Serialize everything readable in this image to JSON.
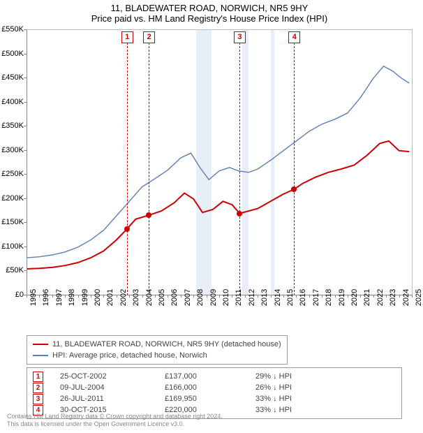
{
  "title": "11, BLADEWATER ROAD, NORWICH, NR5 9HY",
  "subtitle": "Price paid vs. HM Land Registry's House Price Index (HPI)",
  "chart": {
    "type": "line",
    "x_years": [
      1995,
      1996,
      1997,
      1998,
      1999,
      2000,
      2001,
      2002,
      2003,
      2004,
      2005,
      2006,
      2007,
      2008,
      2009,
      2010,
      2011,
      2012,
      2013,
      2014,
      2015,
      2016,
      2017,
      2018,
      2019,
      2020,
      2021,
      2022,
      2023,
      2024,
      2025
    ],
    "ylim": [
      0,
      550000
    ],
    "ytick_step": 50000,
    "ytick_labels": [
      "£0",
      "£50K",
      "£100K",
      "£150K",
      "£200K",
      "£250K",
      "£300K",
      "£350K",
      "£400K",
      "£450K",
      "£500K",
      "£550K"
    ],
    "background_color": "#ffffff",
    "grid_color": "#bbbbbb",
    "recession_bands": [
      {
        "from": 2008.2,
        "to": 2009.4
      },
      {
        "from": 2011.8,
        "to": 2012.3
      },
      {
        "from": 2014.0,
        "to": 2014.3
      }
    ],
    "series": [
      {
        "name": "property",
        "label": "11, BLADEWATER ROAD, NORWICH, NR5 9HY (detached house)",
        "color": "#cc0000",
        "width": 2,
        "points": [
          [
            1995.0,
            55000
          ],
          [
            1996.0,
            56000
          ],
          [
            1997.0,
            58000
          ],
          [
            1998.0,
            62000
          ],
          [
            1999.0,
            68000
          ],
          [
            2000.0,
            78000
          ],
          [
            2001.0,
            92000
          ],
          [
            2002.0,
            115000
          ],
          [
            2002.8,
            137000
          ],
          [
            2003.5,
            158000
          ],
          [
            2004.5,
            166000
          ],
          [
            2005.5,
            175000
          ],
          [
            2006.5,
            192000
          ],
          [
            2007.3,
            212000
          ],
          [
            2008.0,
            200000
          ],
          [
            2008.7,
            172000
          ],
          [
            2009.5,
            178000
          ],
          [
            2010.3,
            195000
          ],
          [
            2011.0,
            188000
          ],
          [
            2011.6,
            169950
          ],
          [
            2012.3,
            175000
          ],
          [
            2013.0,
            180000
          ],
          [
            2014.0,
            195000
          ],
          [
            2015.0,
            210000
          ],
          [
            2015.83,
            220000
          ],
          [
            2016.5,
            232000
          ],
          [
            2017.5,
            245000
          ],
          [
            2018.5,
            255000
          ],
          [
            2019.5,
            262000
          ],
          [
            2020.5,
            270000
          ],
          [
            2021.5,
            290000
          ],
          [
            2022.5,
            315000
          ],
          [
            2023.2,
            320000
          ],
          [
            2024.0,
            300000
          ],
          [
            2024.8,
            298000
          ]
        ]
      },
      {
        "name": "hpi",
        "label": "HPI: Average price, detached house, Norwich",
        "color": "#5b7fb5",
        "width": 1.4,
        "points": [
          [
            1995.0,
            78000
          ],
          [
            1996.0,
            80000
          ],
          [
            1997.0,
            84000
          ],
          [
            1998.0,
            90000
          ],
          [
            1999.0,
            100000
          ],
          [
            2000.0,
            115000
          ],
          [
            2001.0,
            135000
          ],
          [
            2002.0,
            165000
          ],
          [
            2003.0,
            195000
          ],
          [
            2004.0,
            225000
          ],
          [
            2005.0,
            242000
          ],
          [
            2006.0,
            260000
          ],
          [
            2007.0,
            285000
          ],
          [
            2007.8,
            295000
          ],
          [
            2008.5,
            265000
          ],
          [
            2009.2,
            240000
          ],
          [
            2010.0,
            258000
          ],
          [
            2010.8,
            265000
          ],
          [
            2011.5,
            258000
          ],
          [
            2012.3,
            255000
          ],
          [
            2013.0,
            262000
          ],
          [
            2014.0,
            280000
          ],
          [
            2015.0,
            300000
          ],
          [
            2016.0,
            320000
          ],
          [
            2017.0,
            340000
          ],
          [
            2018.0,
            355000
          ],
          [
            2019.0,
            365000
          ],
          [
            2020.0,
            378000
          ],
          [
            2021.0,
            410000
          ],
          [
            2022.0,
            450000
          ],
          [
            2022.8,
            475000
          ],
          [
            2023.5,
            465000
          ],
          [
            2024.2,
            450000
          ],
          [
            2024.8,
            440000
          ]
        ]
      }
    ],
    "sale_markers": [
      {
        "n": "1",
        "x": 2002.81,
        "price": 137000
      },
      {
        "n": "2",
        "x": 2004.52,
        "price": 166000
      },
      {
        "n": "3",
        "x": 2011.57,
        "price": 169950
      },
      {
        "n": "4",
        "x": 2015.83,
        "price": 220000
      }
    ]
  },
  "legend": {
    "rows": [
      {
        "color": "#cc0000",
        "label": "11, BLADEWATER ROAD, NORWICH, NR5 9HY (detached house)"
      },
      {
        "color": "#5b7fb5",
        "label": "HPI: Average price, detached house, Norwich"
      }
    ]
  },
  "sales_table": {
    "rows": [
      {
        "n": "1",
        "date": "25-OCT-2002",
        "price": "£137,000",
        "diff": "29% ↓ HPI"
      },
      {
        "n": "2",
        "date": "09-JUL-2004",
        "price": "£166,000",
        "diff": "26% ↓ HPI"
      },
      {
        "n": "3",
        "date": "26-JUL-2011",
        "price": "£169,950",
        "diff": "33% ↓ HPI"
      },
      {
        "n": "4",
        "date": "30-OCT-2015",
        "price": "£220,000",
        "diff": "33% ↓ HPI"
      }
    ]
  },
  "footnote": {
    "line1": "Contains HM Land Registry data © Crown copyright and database right 2024.",
    "line2": "This data is licensed under the Open Government Licence v3.0."
  }
}
